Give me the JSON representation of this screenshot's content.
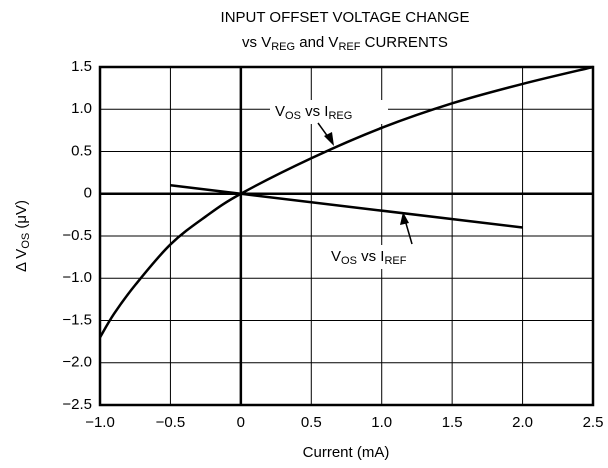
{
  "chart_data": {
    "type": "line",
    "title": {
      "line1": "INPUT OFFSET VOLTAGE CHANGE",
      "line2": [
        {
          "text": "vs V"
        },
        {
          "text": "REG",
          "sub": true
        },
        {
          "text": " and V"
        },
        {
          "text": "REF",
          "sub": true
        },
        {
          "text": " CURRENTS"
        }
      ]
    },
    "x_label": "Current (mA)",
    "y_label": [
      {
        "text": "Δ V"
      },
      {
        "text": "OS",
        "sub": true
      },
      {
        "text": " (μV)"
      }
    ],
    "xlim": [
      -1.0,
      2.5
    ],
    "ylim": [
      -2.5,
      1.5
    ],
    "xticks": [
      {
        "value": -1,
        "label": "−1.0"
      },
      {
        "value": -0.5,
        "label": "−0.5"
      },
      0,
      0.5,
      {
        "value": 1,
        "label": "1.0"
      },
      1.5,
      {
        "value": 2,
        "label": "2.0"
      },
      2.5
    ],
    "yticks": [
      1.5,
      {
        "value": 1,
        "label": "1.0"
      },
      0.5,
      0,
      {
        "value": -0.5,
        "label": "−0.5"
      },
      {
        "value": -1,
        "label": "−1.0"
      },
      {
        "value": -1.5,
        "label": "−1.5"
      },
      {
        "value": -2,
        "label": "−2.0"
      },
      {
        "value": -2.5,
        "label": "−2.5"
      }
    ],
    "grid": true,
    "zero_lines": true,
    "series": [
      {
        "name": [
          {
            "text": "V"
          },
          {
            "text": "OS",
            "sub": true
          },
          {
            "text": " vs I"
          },
          {
            "text": "REG",
            "sub": true
          }
        ],
        "color": "#000000",
        "x": [
          -1.0,
          -0.9,
          -0.75,
          -0.5,
          -0.25,
          0,
          0.5,
          1.0,
          1.5,
          2.0,
          2.5
        ],
        "values": [
          -1.7,
          -1.42,
          -1.08,
          -0.6,
          -0.27,
          0,
          0.42,
          0.78,
          1.07,
          1.3,
          1.5
        ]
      },
      {
        "name": [
          {
            "text": "V"
          },
          {
            "text": "OS",
            "sub": true
          },
          {
            "text": " vs I"
          },
          {
            "text": "REF",
            "sub": true
          }
        ],
        "color": "#000000",
        "x": [
          -0.5,
          0,
          2.0
        ],
        "values": [
          0.1,
          0,
          -0.4
        ]
      }
    ]
  }
}
